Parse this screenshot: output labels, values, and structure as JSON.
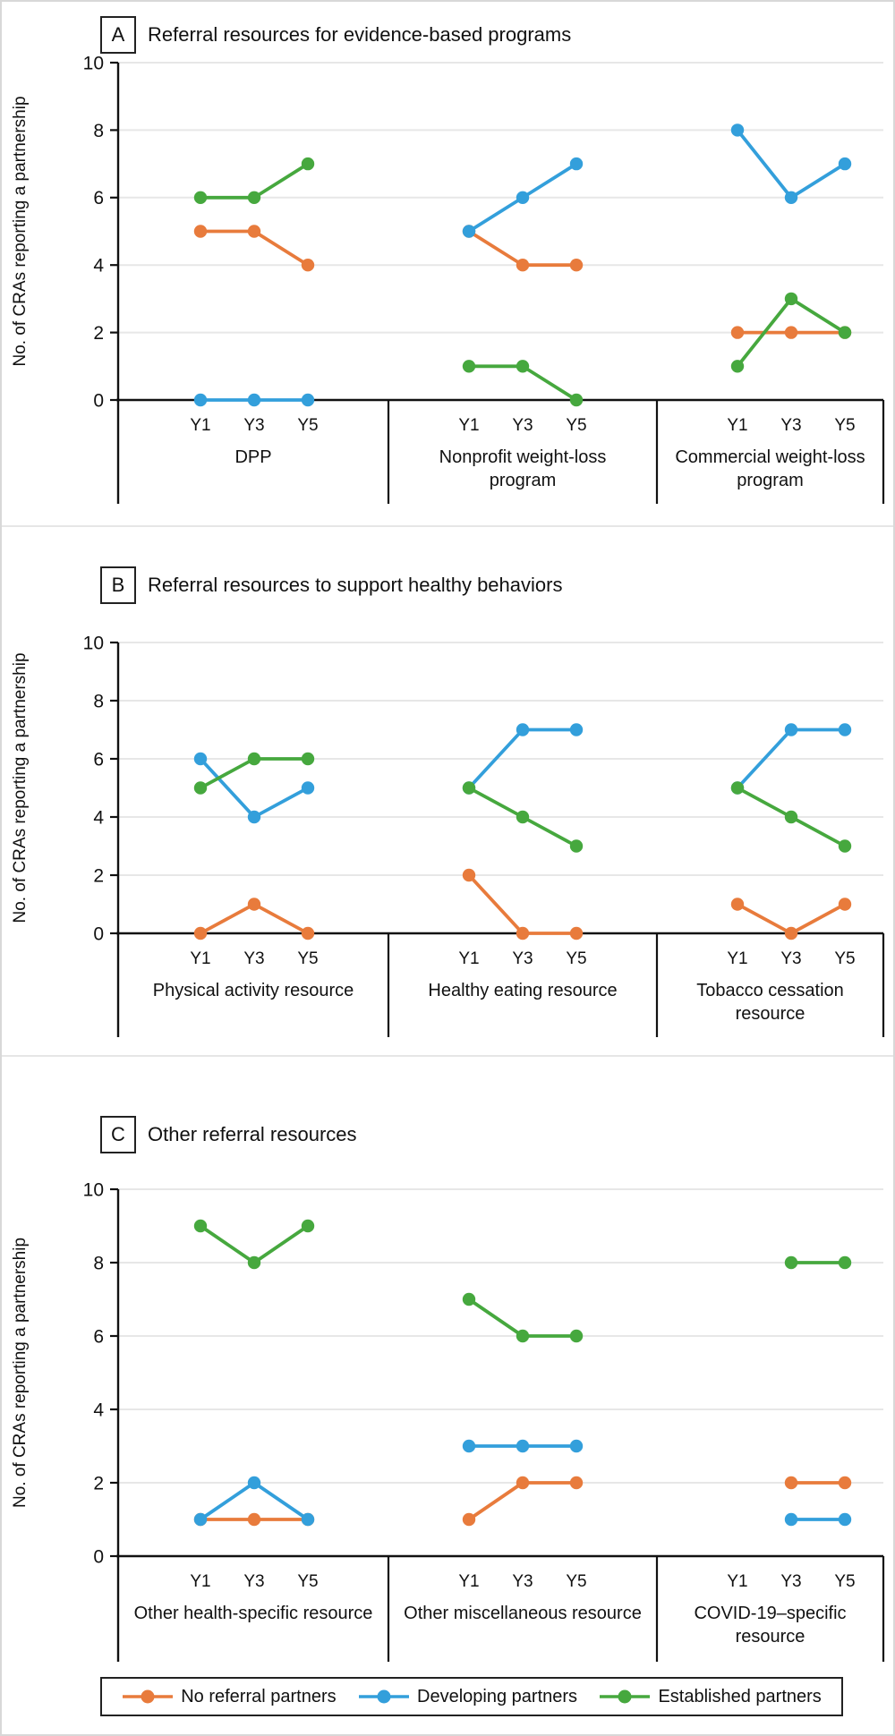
{
  "figure": {
    "y_axis_label": "No. of CRAs reporting a partnership",
    "x_tick_labels": [
      "Y1",
      "Y3",
      "Y5"
    ],
    "y_tick_labels": [
      "0",
      "2",
      "4",
      "6",
      "8",
      "10"
    ]
  },
  "colors": {
    "no_referral_partners": "#E87B3C",
    "developing_partners": "#339FDB",
    "established_partners": "#46A83E",
    "gridline": "#E7E7E7",
    "axis": "#111111"
  },
  "legend": {
    "items": [
      {
        "label": "No referral partners",
        "color": "#E87B3C"
      },
      {
        "label": "Developing partners",
        "color": "#339FDB"
      },
      {
        "label": "Established partners",
        "color": "#46A83E"
      }
    ]
  },
  "chart_data": [
    {
      "type": "line",
      "panel_letter": "A",
      "title": "Referral resources for evidence-based programs",
      "ylabel": "No. of CRAs reporting a partnership",
      "ylim": [
        0,
        10
      ],
      "yticks": [
        0,
        2,
        4,
        6,
        8,
        10
      ],
      "x": [
        "Y1",
        "Y3",
        "Y5"
      ],
      "grid": true,
      "legend_position": "bottom",
      "groups": [
        {
          "label": "DPP",
          "label_lines": [
            "DPP"
          ],
          "series": [
            {
              "name": "No referral partners",
              "color": "#E87B3C",
              "values": [
                5,
                5,
                4
              ]
            },
            {
              "name": "Developing partners",
              "color": "#339FDB",
              "values": [
                0,
                0,
                0
              ]
            },
            {
              "name": "Established partners",
              "color": "#46A83E",
              "values": [
                6,
                6,
                7
              ]
            }
          ]
        },
        {
          "label": "Nonprofit weight-loss program",
          "label_lines": [
            "Nonprofit weight-loss",
            "program"
          ],
          "series": [
            {
              "name": "No referral partners",
              "color": "#E87B3C",
              "values": [
                5,
                4,
                4
              ]
            },
            {
              "name": "Developing partners",
              "color": "#339FDB",
              "values": [
                5,
                6,
                7
              ]
            },
            {
              "name": "Established partners",
              "color": "#46A83E",
              "values": [
                1,
                1,
                0
              ]
            }
          ]
        },
        {
          "label": "Commercial weight-loss program",
          "label_lines": [
            "Commercial weight-loss",
            "program"
          ],
          "series": [
            {
              "name": "No referral partners",
              "color": "#E87B3C",
              "values": [
                2,
                2,
                2
              ]
            },
            {
              "name": "Developing partners",
              "color": "#339FDB",
              "values": [
                8,
                6,
                7
              ]
            },
            {
              "name": "Established partners",
              "color": "#46A83E",
              "values": [
                1,
                3,
                2
              ]
            }
          ]
        }
      ]
    },
    {
      "type": "line",
      "panel_letter": "B",
      "title": "Referral resources to support healthy behaviors",
      "ylabel": "No. of CRAs reporting a partnership",
      "ylim": [
        0,
        10
      ],
      "yticks": [
        0,
        2,
        4,
        6,
        8,
        10
      ],
      "x": [
        "Y1",
        "Y3",
        "Y5"
      ],
      "grid": true,
      "legend_position": "bottom",
      "groups": [
        {
          "label": "Physical activity resource",
          "label_lines": [
            "Physical activity resource"
          ],
          "series": [
            {
              "name": "No referral partners",
              "color": "#E87B3C",
              "values": [
                0,
                1,
                0
              ]
            },
            {
              "name": "Developing partners",
              "color": "#339FDB",
              "values": [
                6,
                4,
                5
              ]
            },
            {
              "name": "Established partners",
              "color": "#46A83E",
              "values": [
                5,
                6,
                6
              ]
            }
          ]
        },
        {
          "label": "Healthy eating resource",
          "label_lines": [
            "Healthy eating resource"
          ],
          "series": [
            {
              "name": "No referral partners",
              "color": "#E87B3C",
              "values": [
                2,
                0,
                0
              ]
            },
            {
              "name": "Developing partners",
              "color": "#339FDB",
              "values": [
                5,
                7,
                7
              ]
            },
            {
              "name": "Established partners",
              "color": "#46A83E",
              "values": [
                5,
                4,
                3
              ]
            }
          ]
        },
        {
          "label": "Tobacco cessation resource",
          "label_lines": [
            "Tobacco cessation",
            "resource"
          ],
          "series": [
            {
              "name": "No referral partners",
              "color": "#E87B3C",
              "values": [
                1,
                0,
                1
              ]
            },
            {
              "name": "Developing partners",
              "color": "#339FDB",
              "values": [
                5,
                7,
                7
              ]
            },
            {
              "name": "Established partners",
              "color": "#46A83E",
              "values": [
                5,
                4,
                3
              ]
            }
          ]
        }
      ]
    },
    {
      "type": "line",
      "panel_letter": "C",
      "title": "Other referral resources",
      "ylabel": "No. of CRAs reporting a partnership",
      "ylim": [
        0,
        10
      ],
      "yticks": [
        0,
        2,
        4,
        6,
        8,
        10
      ],
      "x": [
        "Y1",
        "Y3",
        "Y5"
      ],
      "grid": true,
      "legend_position": "bottom",
      "groups": [
        {
          "label": "Other health-specific resource",
          "label_lines": [
            "Other health-specific resource"
          ],
          "series": [
            {
              "name": "No referral partners",
              "color": "#E87B3C",
              "values": [
                1,
                1,
                1
              ]
            },
            {
              "name": "Developing partners",
              "color": "#339FDB",
              "values": [
                1,
                2,
                1
              ]
            },
            {
              "name": "Established partners",
              "color": "#46A83E",
              "values": [
                9,
                8,
                9
              ]
            }
          ]
        },
        {
          "label": "Other miscellaneous resource",
          "label_lines": [
            "Other miscellaneous resource"
          ],
          "series": [
            {
              "name": "No referral partners",
              "color": "#E87B3C",
              "values": [
                1,
                2,
                2
              ]
            },
            {
              "name": "Developing partners",
              "color": "#339FDB",
              "values": [
                3,
                3,
                3
              ]
            },
            {
              "name": "Established partners",
              "color": "#46A83E",
              "values": [
                7,
                6,
                6
              ]
            }
          ]
        },
        {
          "label": "COVID-19–specific resource",
          "label_lines": [
            "COVID-19–specific",
            "resource"
          ],
          "series": [
            {
              "name": "No referral partners",
              "color": "#E87B3C",
              "values": [
                null,
                2,
                2
              ]
            },
            {
              "name": "Developing partners",
              "color": "#339FDB",
              "values": [
                null,
                1,
                1
              ]
            },
            {
              "name": "Established partners",
              "color": "#46A83E",
              "values": [
                null,
                8,
                8
              ]
            }
          ]
        }
      ]
    }
  ]
}
